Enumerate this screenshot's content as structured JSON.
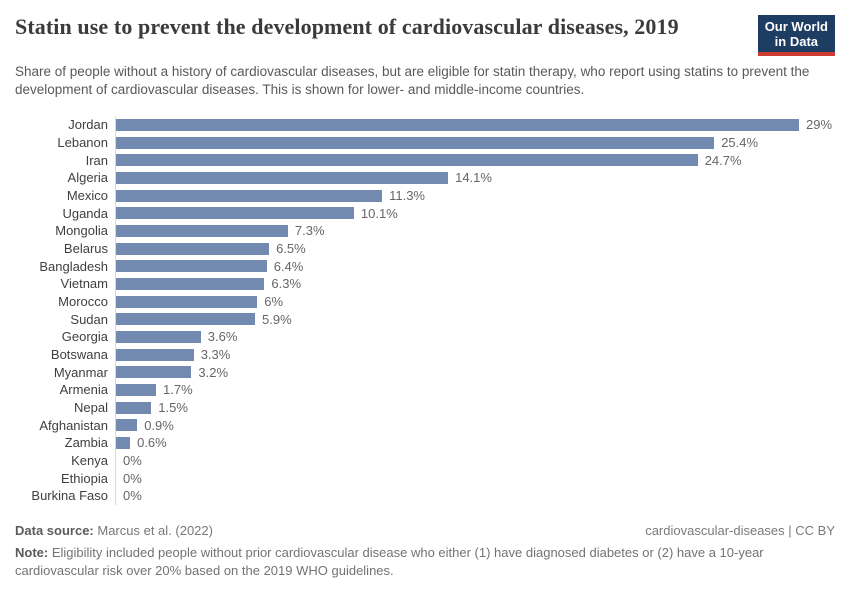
{
  "header": {
    "title": "Statin use to prevent the development of cardiovascular diseases, 2019",
    "logo_text": "Our World\nin Data"
  },
  "subtitle": "Share of people without a history of cardiovascular diseases, but are eligible for statin therapy, who report using statins to prevent the development of cardiovascular diseases. This is shown for lower- and middle-income countries.",
  "chart_data": {
    "type": "bar",
    "orientation": "horizontal",
    "title": "Statin use to prevent the development of cardiovascular diseases, 2019",
    "xlabel": "",
    "ylabel": "",
    "unit": "%",
    "xlim": [
      0,
      29
    ],
    "grid": false,
    "legend": false,
    "bar_color": "#7289b0",
    "axis_line_color": "#d9d9d9",
    "categories": [
      "Jordan",
      "Lebanon",
      "Iran",
      "Algeria",
      "Mexico",
      "Uganda",
      "Mongolia",
      "Belarus",
      "Bangladesh",
      "Vietnam",
      "Morocco",
      "Sudan",
      "Georgia",
      "Botswana",
      "Myanmar",
      "Armenia",
      "Nepal",
      "Afghanistan",
      "Zambia",
      "Kenya",
      "Ethiopia",
      "Burkina Faso"
    ],
    "values": [
      29,
      25.4,
      24.7,
      14.1,
      11.3,
      10.1,
      7.3,
      6.5,
      6.4,
      6.3,
      6,
      5.9,
      3.6,
      3.3,
      3.2,
      1.7,
      1.5,
      0.9,
      0.6,
      0,
      0,
      0
    ],
    "value_labels": [
      "29%",
      "25.4%",
      "24.7%",
      "14.1%",
      "11.3%",
      "10.1%",
      "7.3%",
      "6.5%",
      "6.4%",
      "6.3%",
      "6%",
      "5.9%",
      "3.6%",
      "3.3%",
      "3.2%",
      "1.7%",
      "1.5%",
      "0.9%",
      "0.6%",
      "0%",
      "0%",
      "0%"
    ]
  },
  "footer": {
    "datasource_label": "Data source:",
    "datasource_value": " Marcus et al. (2022)",
    "attribution": "cardiovascular-diseases | CC BY",
    "note_label": "Note:",
    "note_text": " Eligibility included people without prior cardiovascular disease who either (1) have diagnosed diabetes or (2) have a 10-year cardiovascular risk over 20% based on the 2019 WHO guidelines."
  }
}
